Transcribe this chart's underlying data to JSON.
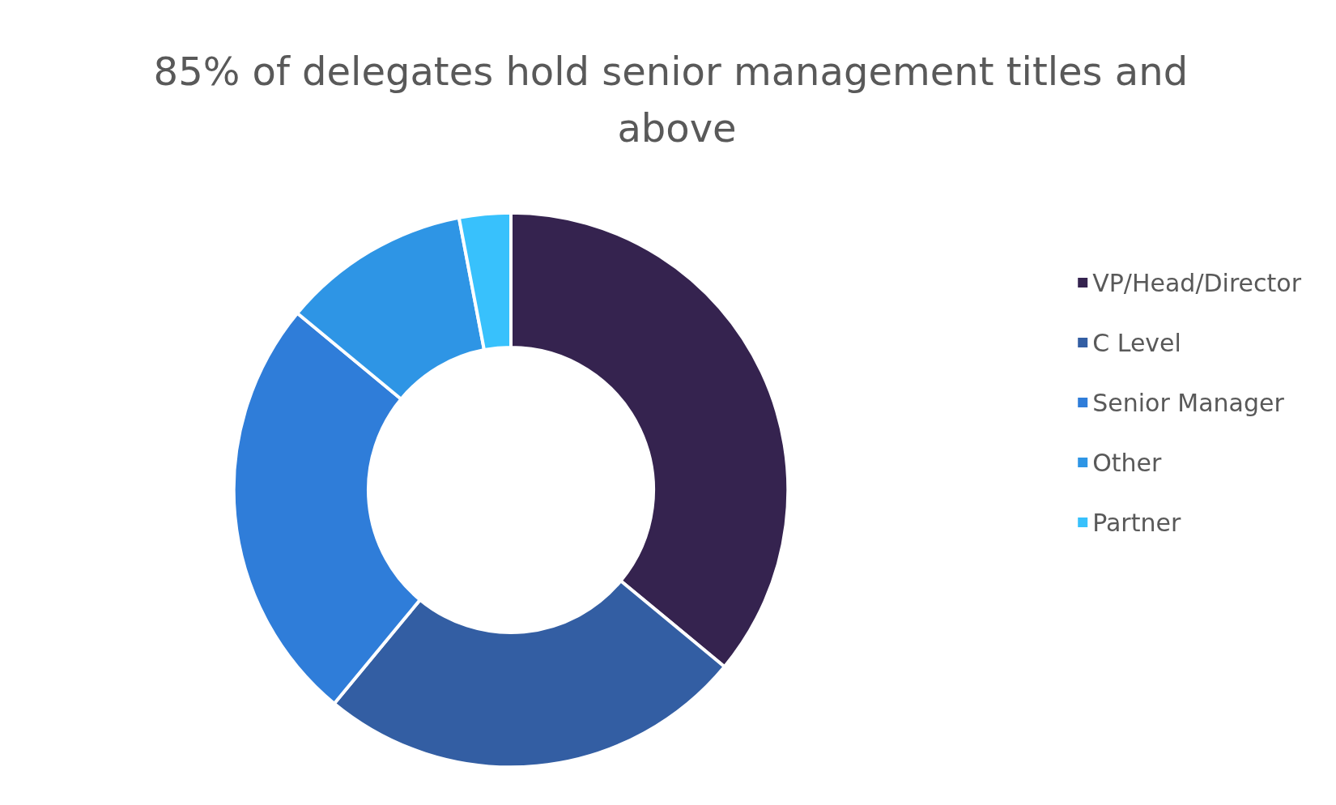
{
  "chart_data": {
    "type": "donut",
    "title": "85% of delegates hold senior management titles and above",
    "categories": [
      "VP/Head/Director",
      "C Level",
      "Senior Manager",
      "Other",
      "Partner"
    ],
    "values": [
      36,
      25,
      25,
      11,
      3
    ],
    "colors": [
      "#35234f",
      "#335ea3",
      "#2f7dd9",
      "#2e95e5",
      "#38c1fc"
    ],
    "legend": "right"
  }
}
